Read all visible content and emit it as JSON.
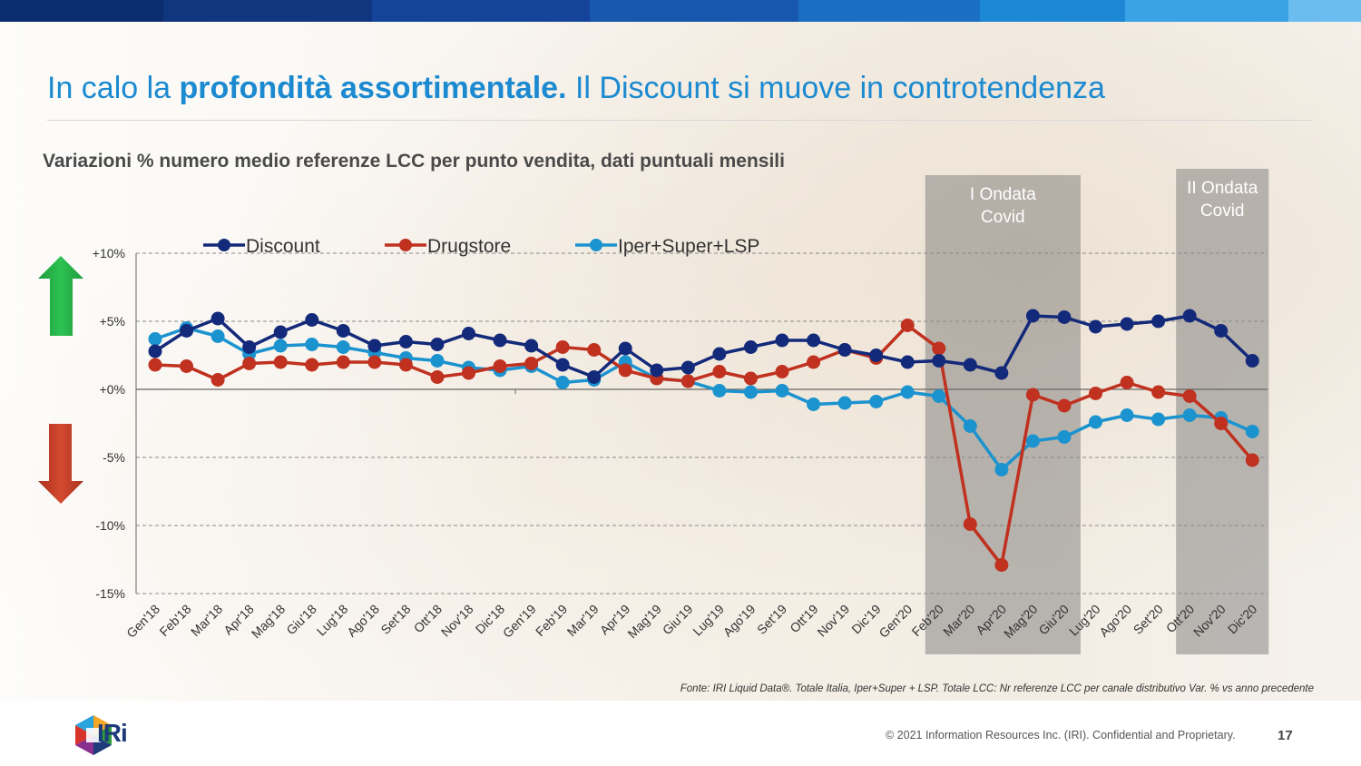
{
  "topbar_colors": [
    "#0b2c6e",
    "#10367f",
    "#14449a",
    "#1757ad",
    "#1a6ec4",
    "#1d88d6",
    "#3aa3e6",
    "#6bbcef"
  ],
  "title": {
    "normal1": "In calo la ",
    "bold": "profondità assortimentale.",
    "normal2": " Il Discount si muove in controtendenza"
  },
  "subtitle": "Variazioni % numero medio referenze LCC per punto vendita, dati puntuali mensili",
  "source": "Fonte: IRI Liquid Data®.  Totale Italia, Iper+Super + LSP. Totale LCC: Nr referenze LCC  per canale distributivo  Var. %  vs anno precedente",
  "copyright": "© 2021 Information Resources Inc. (IRI). Confidential and Proprietary.",
  "page_number": "17",
  "logo_text": "IRi",
  "icons": {
    "up": "green-up-arrow-icon",
    "down": "red-down-arrow-icon"
  },
  "chart_data": {
    "type": "line",
    "categories": [
      "Gen'18",
      "Feb'18",
      "Mar'18",
      "Apr'18",
      "Mag'18",
      "Giu'18",
      "Lug'18",
      "Ago'18",
      "Set'18",
      "Ott'18",
      "Nov'18",
      "Dic'18",
      "Gen'19",
      "Feb'19",
      "Mar'19",
      "Apr'19",
      "Mag'19",
      "Giu'19",
      "Lug'19",
      "Ago'19",
      "Set'19",
      "Ott'19",
      "Nov'19",
      "Dic'19",
      "Gen'20",
      "Feb'20",
      "Mar'20",
      "Apr'20",
      "Mag'20",
      "Giu'20",
      "Lug'20",
      "Ago'20",
      "Set'20",
      "Ott'20",
      "Nov'20",
      "Dic'20"
    ],
    "y_tick_labels": [
      "+10%",
      "+5%",
      "+0%",
      "-5%",
      "-10%",
      "-15%"
    ],
    "y_tick_values": [
      10,
      5,
      0,
      -5,
      -10,
      -15
    ],
    "ylim": [
      -15,
      10
    ],
    "series": [
      {
        "name": "Discount",
        "color": "#13297a",
        "values": [
          2.8,
          4.3,
          5.2,
          3.1,
          4.2,
          5.1,
          4.3,
          3.2,
          3.5,
          3.3,
          4.1,
          3.6,
          3.2,
          1.8,
          0.9,
          3.0,
          1.4,
          1.6,
          2.6,
          3.1,
          3.6,
          3.6,
          2.9,
          2.5,
          2.0,
          2.1,
          1.8,
          1.2,
          5.4,
          5.3,
          4.6,
          4.8,
          5.0,
          5.4,
          4.3,
          2.1
        ]
      },
      {
        "name": "Drugstore",
        "color": "#c0311f",
        "values": [
          1.8,
          1.7,
          0.7,
          1.9,
          2.0,
          1.8,
          2.0,
          2.0,
          1.8,
          0.9,
          1.2,
          1.7,
          1.9,
          3.1,
          2.9,
          1.4,
          0.8,
          0.6,
          1.3,
          0.8,
          1.3,
          2.0,
          2.9,
          2.3,
          4.7,
          3.0,
          -9.9,
          -12.9,
          -0.4,
          -1.2,
          -0.3,
          0.5,
          -0.2,
          -0.5,
          -2.5,
          -5.2
        ]
      },
      {
        "name": "Iper+Super+LSP",
        "color": "#1b93cf",
        "values": [
          3.7,
          4.5,
          3.9,
          2.6,
          3.2,
          3.3,
          3.1,
          2.7,
          2.3,
          2.1,
          1.6,
          1.4,
          1.7,
          0.5,
          0.7,
          2.0,
          0.8,
          0.6,
          -0.1,
          -0.2,
          -0.1,
          -1.1,
          -1.0,
          -0.9,
          -0.2,
          -0.5,
          -2.7,
          -5.9,
          -3.8,
          -3.5,
          -2.4,
          -1.9,
          -2.2,
          -1.9,
          -2.1,
          -3.1
        ]
      }
    ],
    "shaded_periods": [
      {
        "label_line1": "I Ondata",
        "label_line2": "Covid",
        "from": "Feb'20",
        "to": "Giu'20"
      },
      {
        "label_line1": "II Ondata",
        "label_line2": "Covid",
        "from": "Ott'20",
        "to": "Dic'20"
      }
    ],
    "legend_position": "top",
    "grid": true
  }
}
